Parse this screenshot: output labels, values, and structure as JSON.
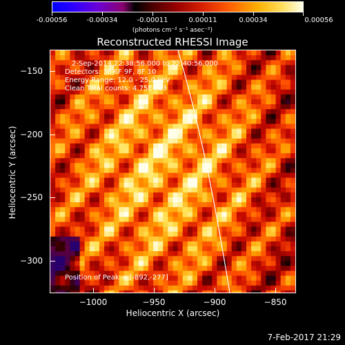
{
  "colorbar": {
    "tick_labels": [
      "-0.00056",
      "-0.00034",
      "-0.00011",
      "0.00011",
      "0.00034",
      "0.00056"
    ],
    "units": "(photons cm⁻² s⁻¹ asec⁻²)"
  },
  "title": "Reconstructed RHESSI Image",
  "annotations": {
    "time": "2-Sep-2014 22:38:56.000 to 22:40:56.000",
    "detectors": "Detectors: 3F 6F 9F, 8F 10",
    "energy": "Energy Range: 12.0 - 25.0 keV",
    "clean": "Clean    Total counts: 4.75E+03",
    "peak": "Position of Peak = [-892,-277]"
  },
  "axes": {
    "xlabel": "Heliocentric X (arcsec)",
    "ylabel": "Heliocentric Y (arcsec)",
    "x_ticks": [
      "−1000",
      "−950",
      "−900",
      "−850"
    ],
    "y_ticks": [
      "−150",
      "−200",
      "−250",
      "−300"
    ]
  },
  "colors": {
    "limb": "#ffffff",
    "background": "#000000"
  },
  "footer": "7-Feb-2017 21:29"
}
